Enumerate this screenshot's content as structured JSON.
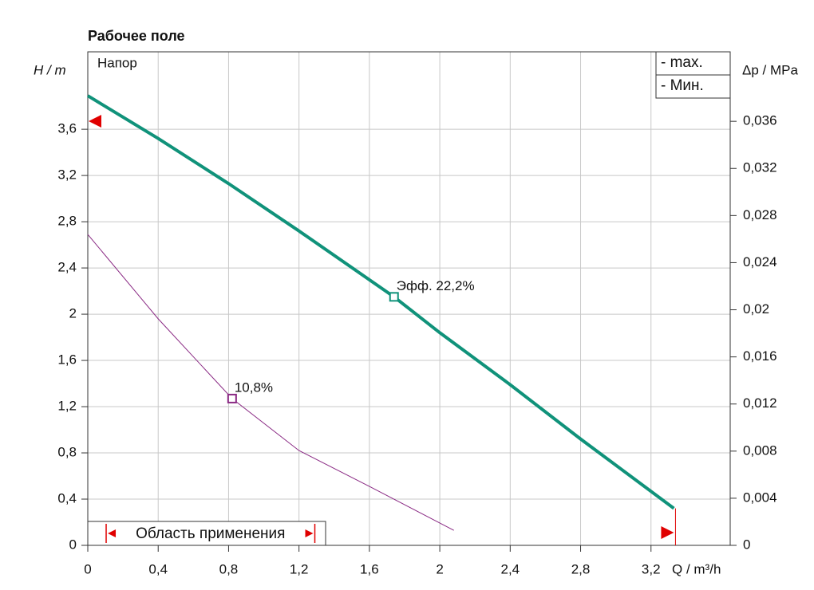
{
  "chart_data": {
    "type": "line",
    "title": "Рабочее поле",
    "inner_label": "Напор",
    "y_label": "H  /  m",
    "y2_label": "Δp  /  MPa",
    "x_label": "Q  /  m³/h",
    "xlim": [
      0,
      3.65
    ],
    "ylim": [
      0,
      4.27
    ],
    "y2lim": [
      0,
      0.0419
    ],
    "xticks": [
      0,
      {
        "value": 0.4,
        "label": "0,4"
      },
      {
        "value": 0.8,
        "label": "0,8"
      },
      {
        "value": 1.2,
        "label": "1,2"
      },
      {
        "value": 1.6,
        "label": "1,6"
      },
      2,
      {
        "value": 2.4,
        "label": "2,4"
      },
      {
        "value": 2.8,
        "label": "2,8"
      },
      {
        "value": 3.2,
        "label": "3,2"
      }
    ],
    "yticks": [
      0,
      {
        "value": 0.4,
        "label": "0,4"
      },
      {
        "value": 0.8,
        "label": "0,8"
      },
      {
        "value": 1.2,
        "label": "1,2"
      },
      {
        "value": 1.6,
        "label": "1,6"
      },
      2,
      {
        "value": 2.4,
        "label": "2,4"
      },
      {
        "value": 2.8,
        "label": "2,8"
      },
      {
        "value": 3.2,
        "label": "3,2"
      },
      {
        "value": 3.6,
        "label": "3,6"
      }
    ],
    "y2ticks": [
      0,
      {
        "value": 0.004,
        "label": "0,004"
      },
      {
        "value": 0.008,
        "label": "0,008"
      },
      {
        "value": 0.012,
        "label": "0,012"
      },
      {
        "value": 0.016,
        "label": "0,016"
      },
      {
        "value": 0.02,
        "label": "0,02"
      },
      {
        "value": 0.024,
        "label": "0,024"
      },
      {
        "value": 0.028,
        "label": "0,028"
      },
      {
        "value": 0.032,
        "label": "0,032"
      },
      {
        "value": 0.036,
        "label": "0,036"
      }
    ],
    "grid": true,
    "series": [
      {
        "name": "-  max.",
        "color": "#10927a",
        "width": 4,
        "x": [
          0,
          0.4,
          0.8,
          1.2,
          1.74,
          2.0,
          2.4,
          2.8,
          3.33
        ],
        "values": [
          3.89,
          3.52,
          3.13,
          2.72,
          2.15,
          1.84,
          1.39,
          0.92,
          0.32
        ]
      },
      {
        "name": "-  Мин.",
        "color": "#8a2a84",
        "width": 1,
        "x": [
          0,
          0.4,
          0.82,
          1.2,
          1.6,
          2.08
        ],
        "values": [
          2.69,
          1.96,
          1.27,
          0.82,
          0.51,
          0.13
        ]
      }
    ],
    "annotations": [
      {
        "text": "Эфф.  22,2%",
        "x": 1.74,
        "y": 2.15,
        "color": "#10927a"
      },
      {
        "text": "10,8%",
        "x": 0.82,
        "y": 1.27,
        "color": "#8a2a84"
      }
    ],
    "range_label": "Область применения",
    "range": [
      0.05,
      1.29
    ],
    "axis_markers": {
      "y": 3.67,
      "x": 3.33
    }
  }
}
